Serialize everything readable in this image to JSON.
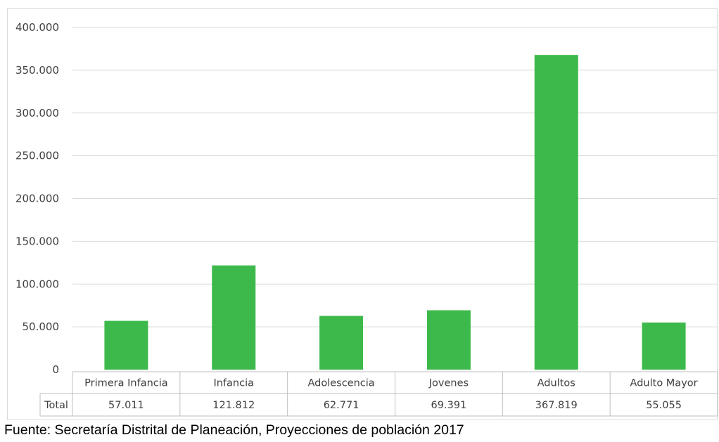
{
  "chart_data": {
    "type": "bar",
    "categories": [
      "Primera Infancia",
      "Infancia",
      "Adolescencia",
      "Jovenes",
      "Adultos",
      "Adulto Mayor"
    ],
    "series": [
      {
        "name": "Total",
        "values": [
          57011,
          121812,
          62771,
          69391,
          367819,
          55055
        ],
        "color": "#3cb94a"
      }
    ],
    "value_labels": [
      "57.011",
      "121.812",
      "62.771",
      "69.391",
      "367.819",
      "55.055"
    ],
    "yticks": [
      0,
      50000,
      100000,
      150000,
      200000,
      250000,
      300000,
      350000,
      400000
    ],
    "ytick_labels": [
      "0",
      "50.000",
      "100.000",
      "150.000",
      "200.000",
      "250.000",
      "300.000",
      "350.000",
      "400.000"
    ],
    "ylim": [
      0,
      400000
    ],
    "grid": true,
    "data_table": true,
    "table_row_label": "Total"
  },
  "source_note": "Fuente: Secretaría Distrital de Planeación, Proyecciones de población 2017"
}
